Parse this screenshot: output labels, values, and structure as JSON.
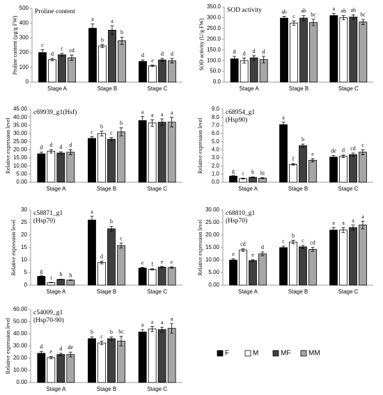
{
  "legend": {
    "series": [
      {
        "name": "F",
        "color": "#000000"
      },
      {
        "name": "M",
        "color": "#ffffff"
      },
      {
        "name": "MF",
        "color": "#404040"
      },
      {
        "name": "MM",
        "color": "#a6a6a6"
      }
    ]
  },
  "chart_data": [
    {
      "type": "bar",
      "title": [
        "Proline content"
      ],
      "ylabel": "Proline content (µg/g FW)",
      "categories": [
        "Stage A",
        "Stage B",
        "Stage C"
      ],
      "ylim": [
        0,
        500
      ],
      "yticks": [
        0,
        100,
        200,
        300,
        400,
        500
      ],
      "series": [
        {
          "values": [
            200,
            365,
            140
          ],
          "errors": [
            20,
            30,
            10
          ],
          "letters": [
            "c",
            "a",
            "d"
          ]
        },
        {
          "values": [
            152,
            245,
            110
          ],
          "errors": [
            8,
            10,
            5
          ],
          "letters": [
            "d",
            "b",
            "e"
          ]
        },
        {
          "values": [
            185,
            352,
            150
          ],
          "errors": [
            10,
            30,
            10
          ],
          "letters": [
            "c",
            "a",
            "d"
          ]
        },
        {
          "values": [
            165,
            280,
            145
          ],
          "errors": [
            18,
            25,
            15
          ],
          "letters": [
            "cd",
            "b",
            "d"
          ]
        }
      ]
    },
    {
      "type": "bar",
      "title": [
        "SOD activity"
      ],
      "ylabel": "SOD activity (U/g FW)",
      "categories": [
        "Stage A",
        "Stage B",
        "Stage C"
      ],
      "ylim": [
        0,
        350
      ],
      "yticks": [
        {
          "value": 0,
          "label": "0.0"
        },
        {
          "value": 50,
          "label": "50.0"
        },
        {
          "value": 100,
          "label": "100.0"
        },
        {
          "value": 150,
          "label": "150.0"
        },
        {
          "value": 200,
          "label": "200.0"
        },
        {
          "value": 250,
          "label": "250.0"
        },
        {
          "value": 300,
          "label": "300.0"
        },
        {
          "value": 350,
          "label": "350.0"
        }
      ],
      "series": [
        {
          "values": [
            108,
            298,
            310
          ],
          "errors": [
            12,
            8,
            10
          ],
          "letters": [
            "d",
            "ab",
            "a"
          ]
        },
        {
          "values": [
            100,
            275,
            300
          ],
          "errors": [
            12,
            10,
            10
          ],
          "letters": [
            "d",
            "c",
            "ab"
          ]
        },
        {
          "values": [
            113,
            298,
            303
          ],
          "errors": [
            10,
            12,
            10
          ],
          "letters": [
            "d",
            "ab",
            "ab"
          ]
        },
        {
          "values": [
            105,
            278,
            280
          ],
          "errors": [
            15,
            15,
            12
          ],
          "letters": [
            "d",
            "bc",
            "bc"
          ]
        }
      ]
    },
    {
      "type": "bar",
      "title": [
        "c69939_g1(Hsf)"
      ],
      "ylabel": "Relative expression level",
      "categories": [
        "Stage A",
        "Stage B",
        "Stage C"
      ],
      "ylim": [
        0,
        45
      ],
      "yticks": [
        {
          "value": 0,
          "label": "0.00"
        },
        {
          "value": 5,
          "label": "5.00"
        },
        {
          "value": 10,
          "label": "10.00"
        },
        {
          "value": 15,
          "label": "15.00"
        },
        {
          "value": 20,
          "label": "20.00"
        },
        {
          "value": 25,
          "label": "25.00"
        },
        {
          "value": 30,
          "label": "30.00"
        },
        {
          "value": 35,
          "label": "35.00"
        },
        {
          "value": 40,
          "label": "40.00"
        },
        {
          "value": 45,
          "label": "45.00"
        }
      ],
      "series": [
        {
          "values": [
            17.5,
            27,
            38
          ],
          "errors": [
            1,
            1,
            2.5
          ],
          "letters": [
            "d",
            "c",
            "a"
          ]
        },
        {
          "values": [
            19,
            30,
            36.5
          ],
          "errors": [
            1,
            1.5,
            2
          ],
          "letters": [
            "d",
            "b",
            "a"
          ]
        },
        {
          "values": [
            18,
            26.5,
            37
          ],
          "errors": [
            0.8,
            1,
            2
          ],
          "letters": [
            "d",
            "c",
            "a"
          ]
        },
        {
          "values": [
            18.5,
            31,
            37
          ],
          "errors": [
            1.5,
            2.5,
            3
          ],
          "letters": [
            "d",
            "b",
            "a"
          ]
        }
      ]
    },
    {
      "type": "bar",
      "title": [
        "c68954_g1",
        "(Hsp90)"
      ],
      "ylabel": "Relative expression level",
      "categories": [
        "Stage A",
        "Stage B",
        "Stage C"
      ],
      "ylim": [
        0,
        9
      ],
      "yticks": [
        {
          "value": 0,
          "label": "0.0"
        },
        {
          "value": 1,
          "label": "1.0"
        },
        {
          "value": 2,
          "label": "2.0"
        },
        {
          "value": 3,
          "label": "3.0"
        },
        {
          "value": 4,
          "label": "4.0"
        },
        {
          "value": 5,
          "label": "5.0"
        },
        {
          "value": 6,
          "label": "6.0"
        },
        {
          "value": 7,
          "label": "7.0"
        },
        {
          "value": 8,
          "label": "8.0"
        },
        {
          "value": 9,
          "label": "9.0"
        }
      ],
      "series": [
        {
          "values": [
            0.75,
            7.1,
            3.1
          ],
          "errors": [
            0.05,
            0.3,
            0.2
          ],
          "letters": [
            "g",
            "a",
            "de"
          ]
        },
        {
          "values": [
            0.45,
            2.2,
            3.2
          ],
          "errors": [
            0.05,
            0.1,
            0.15
          ],
          "letters": [
            "i",
            "f",
            "d"
          ]
        },
        {
          "values": [
            0.6,
            4.5,
            3.4
          ],
          "errors": [
            0.05,
            0.2,
            0.2
          ],
          "letters": [
            "h",
            "b",
            "cd"
          ]
        },
        {
          "values": [
            0.5,
            2.7,
            3.7
          ],
          "errors": [
            0.05,
            0.2,
            0.3
          ],
          "letters": [
            "hi",
            "e",
            "c"
          ]
        }
      ]
    },
    {
      "type": "bar",
      "title": [
        "c58871_g1",
        "(Hsp70)"
      ],
      "ylabel": "Relative expression level",
      "categories": [
        "Stage A",
        "Stage B",
        "Stage C"
      ],
      "ylim": [
        0,
        30
      ],
      "yticks": [
        0,
        5,
        10,
        15,
        20,
        25,
        30
      ],
      "series": [
        {
          "values": [
            3.5,
            26,
            6.8
          ],
          "errors": [
            0.2,
            1.5,
            0.3
          ],
          "letters": [
            "g",
            "a",
            "e"
          ]
        },
        {
          "values": [
            1,
            9,
            6.3
          ],
          "errors": [
            0.1,
            0.5,
            0.2
          ],
          "letters": [
            "i",
            "d",
            "f"
          ]
        },
        {
          "values": [
            2.3,
            22.5,
            7.2
          ],
          "errors": [
            0.1,
            1,
            0.3
          ],
          "letters": [
            "h",
            "b",
            "e"
          ]
        },
        {
          "values": [
            2,
            15.8,
            7
          ],
          "errors": [
            0.1,
            1,
            0.3
          ],
          "letters": [
            "h",
            "c",
            "e"
          ]
        }
      ]
    },
    {
      "type": "bar",
      "title": [
        "c68810_g1",
        "(Hsp70)"
      ],
      "ylabel": "Relative expression level",
      "categories": [
        "Stage A",
        "Stage B",
        "Stage C"
      ],
      "ylim": [
        0,
        30
      ],
      "yticks": [
        {
          "value": 0,
          "label": "0.00"
        },
        {
          "value": 5,
          "label": "5.00"
        },
        {
          "value": 10,
          "label": "10.00"
        },
        {
          "value": 15,
          "label": "15.00"
        },
        {
          "value": 20,
          "label": "20.00"
        },
        {
          "value": 25,
          "label": "25.00"
        },
        {
          "value": 30,
          "label": "30.00"
        }
      ],
      "series": [
        {
          "values": [
            10,
            15,
            22
          ],
          "errors": [
            0.5,
            0.6,
            1
          ],
          "letters": [
            "e",
            "c",
            "a"
          ]
        },
        {
          "values": [
            14,
            17.2,
            22
          ],
          "errors": [
            0.5,
            0.7,
            1
          ],
          "letters": [
            "cd",
            "b",
            "a"
          ]
        },
        {
          "values": [
            9.8,
            15.3,
            23
          ],
          "errors": [
            0.4,
            0.6,
            1
          ],
          "letters": [
            "e",
            "c",
            "a"
          ]
        },
        {
          "values": [
            12.5,
            14.3,
            24
          ],
          "errors": [
            0.8,
            0.8,
            1.5
          ],
          "letters": [
            "d",
            "cd",
            "a"
          ]
        }
      ]
    },
    {
      "type": "bar",
      "title": [
        "c54009_g1",
        "(Hsp70-90)"
      ],
      "ylabel": "Relative expression level",
      "categories": [
        "Stage A",
        "Stage B",
        "Stage C"
      ],
      "ylim": [
        0,
        60
      ],
      "yticks": [
        {
          "value": 0,
          "label": "0.00"
        },
        {
          "value": 10,
          "label": "10.00"
        },
        {
          "value": 20,
          "label": "20.00"
        },
        {
          "value": 30,
          "label": "30.00"
        },
        {
          "value": 40,
          "label": "40.00"
        },
        {
          "value": 50,
          "label": "50.00"
        },
        {
          "value": 60,
          "label": "60.00"
        }
      ],
      "series": [
        {
          "values": [
            24,
            36,
            41.5
          ],
          "errors": [
            1.5,
            1.5,
            2
          ],
          "letters": [
            "d",
            "b",
            "a"
          ]
        },
        {
          "values": [
            20.5,
            32.5,
            44
          ],
          "errors": [
            1,
            1.5,
            2
          ],
          "letters": [
            "e",
            "c",
            "a"
          ]
        },
        {
          "values": [
            23,
            36,
            43.5
          ],
          "errors": [
            1,
            1.5,
            2
          ],
          "letters": [
            "d",
            "b",
            "a"
          ]
        },
        {
          "values": [
            23,
            34,
            44.5
          ],
          "errors": [
            2,
            4,
            4
          ],
          "letters": [
            "de",
            "bc",
            "a"
          ]
        }
      ]
    }
  ]
}
